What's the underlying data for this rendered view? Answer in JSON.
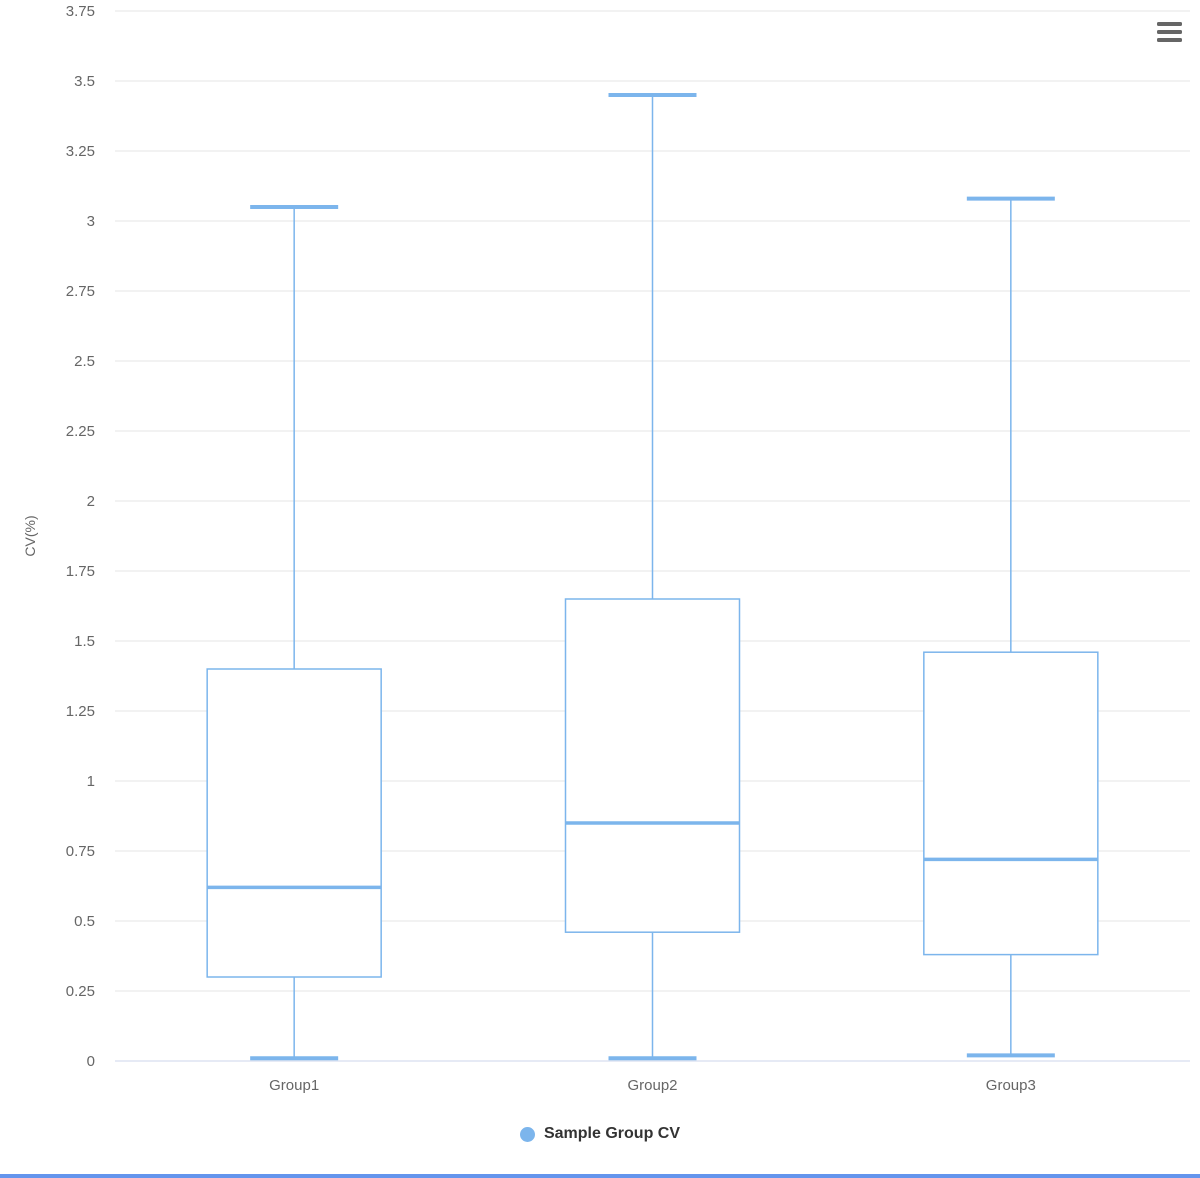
{
  "chart_data": {
    "type": "boxplot",
    "title": "",
    "categories": [
      "Group1",
      "Group2",
      "Group3"
    ],
    "series": [
      {
        "name": "Sample Group CV",
        "color": "#7cb5ec",
        "values": [
          {
            "category": "Group1",
            "low": 0.01,
            "q1": 0.3,
            "median": 0.62,
            "q3": 1.4,
            "high": 3.05
          },
          {
            "category": "Group2",
            "low": 0.01,
            "q1": 0.46,
            "median": 0.85,
            "q3": 1.65,
            "high": 3.45
          },
          {
            "category": "Group3",
            "low": 0.02,
            "q1": 0.38,
            "median": 0.72,
            "q3": 1.46,
            "high": 3.08
          }
        ]
      }
    ],
    "xlabel": "",
    "ylabel": "CV(%)",
    "ylim": [
      0,
      3.75
    ],
    "ytick_interval": 0.25,
    "yticks": [
      "0",
      "0.25",
      "0.5",
      "0.75",
      "1",
      "1.25",
      "1.5",
      "1.75",
      "2",
      "2.25",
      "2.5",
      "2.75",
      "3",
      "3.25",
      "3.5",
      "3.75"
    ],
    "grid": true,
    "legend_position": "bottom-center"
  },
  "colors": {
    "series": "#7cb5ec",
    "box_fill": "#ffffff",
    "grid_line": "#e6e6e6",
    "axis_line": "#ccd6eb",
    "tick_label": "#666666",
    "category_label": "#666666",
    "y_title": "#666666",
    "legend_text": "#333333",
    "legend_marker": "#7cb5ec",
    "menu_icon": "#666666",
    "bottom_bar": "#6495ed"
  },
  "context_menu": {
    "tooltip": "Chart context menu"
  }
}
